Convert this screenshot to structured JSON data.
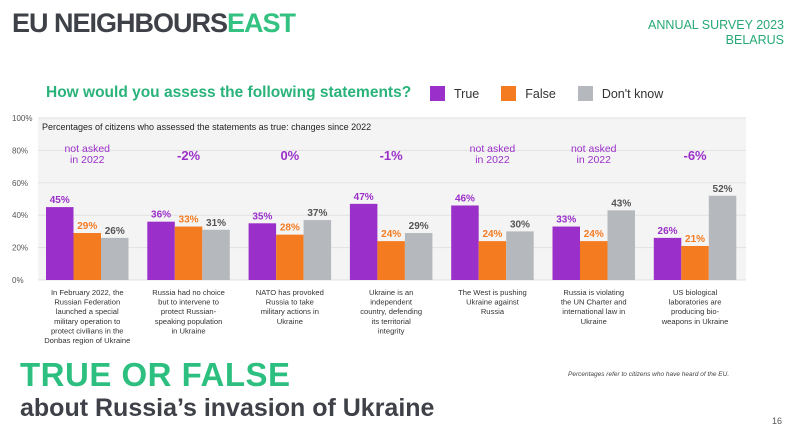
{
  "header": {
    "logo_main": "EU NEIGHBOURS",
    "logo_accent": "EAST",
    "survey_line1": "ANNUAL SURVEY 2023",
    "survey_line2": "BELARUS"
  },
  "question": "How would you assess the following statements?",
  "legend": [
    {
      "label": "True",
      "color": "#9b2fc9"
    },
    {
      "label": "False",
      "color": "#f47b20"
    },
    {
      "label": "Don't know",
      "color": "#b5b9bd"
    }
  ],
  "chart_data": {
    "type": "bar",
    "title": "Percentages of citizens who assessed the statements as true: changes since 2022",
    "ylim": [
      0,
      100
    ],
    "yticks": [
      "0%",
      "20%",
      "40%",
      "60%",
      "80%",
      "100%"
    ],
    "grid": true,
    "legend_position": "top-right",
    "categories": [
      "In February 2022, the Russian Federation launched a special military operation to protect civilians in the Donbas region of Ukraine",
      "Russia had no choice but to intervene to protect Russian-speaking population in Ukraine",
      "NATO has provoked Russia to take military actions in Ukraine",
      "Ukraine is an independent country, defending its territorial integrity",
      "The West is pushing Ukraine against Russia",
      "Russia is violating the UN Charter and international law in Ukraine",
      "US biological laboratories are producing bio-weapons in Ukraine"
    ],
    "category_lines": [
      [
        "In February 2022, the",
        "Russian Federation",
        "launched a special",
        "military operation to",
        "protect civilians in the",
        "Donbas region of Ukraine"
      ],
      [
        "Russia had no choice",
        "but to intervene to",
        "protect Russian-",
        "speaking population",
        "in Ukraine"
      ],
      [
        "NATO has provoked",
        "Russia to take",
        "military actions in",
        "Ukraine"
      ],
      [
        "Ukraine is an",
        "independent",
        "country, defending",
        "its territorial",
        "integrity"
      ],
      [
        "The West is pushing",
        "Ukraine against",
        "Russia"
      ],
      [
        "Russia is violating",
        "the UN Charter and",
        "international law in",
        "Ukraine"
      ],
      [
        "US biological",
        "laboratories are",
        "producing bio-",
        "weapons in Ukraine"
      ]
    ],
    "changes": [
      "not asked\nin 2022",
      "-2%",
      "0%",
      "-1%",
      "not asked\nin 2022",
      "not asked\nin 2022",
      "-6%"
    ],
    "series": [
      {
        "name": "True",
        "color": "#9b2fc9",
        "values": [
          45,
          36,
          35,
          47,
          46,
          33,
          26
        ]
      },
      {
        "name": "False",
        "color": "#f47b20",
        "values": [
          29,
          33,
          28,
          24,
          24,
          24,
          21
        ]
      },
      {
        "name": "Don't know",
        "color": "#b5b9bd",
        "values": [
          26,
          31,
          37,
          29,
          30,
          43,
          52
        ]
      }
    ]
  },
  "headline": {
    "line1": "TRUE OR FALSE",
    "line2": "about Russia’s invasion of Ukraine"
  },
  "footnote": "Percentages refer to citizens who have heard of the EU.",
  "page_number": "16"
}
